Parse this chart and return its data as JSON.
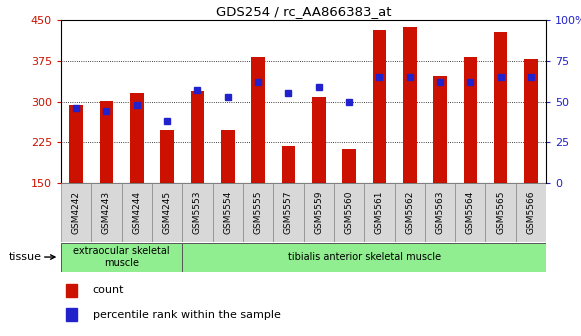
{
  "title": "GDS254 / rc_AA866383_at",
  "samples": [
    "GSM4242",
    "GSM4243",
    "GSM4244",
    "GSM4245",
    "GSM5553",
    "GSM5554",
    "GSM5555",
    "GSM5557",
    "GSM5559",
    "GSM5560",
    "GSM5561",
    "GSM5562",
    "GSM5563",
    "GSM5564",
    "GSM5565",
    "GSM5566"
  ],
  "counts": [
    293,
    302,
    315,
    248,
    320,
    248,
    383,
    218,
    308,
    213,
    432,
    438,
    347,
    383,
    428,
    378
  ],
  "percentile": [
    46,
    44,
    48,
    38,
    57,
    53,
    62,
    55,
    59,
    50,
    65,
    65,
    62,
    62,
    65,
    65
  ],
  "tissue_groups": [
    {
      "label": "extraocular skeletal\nmuscle",
      "start": 0,
      "end": 4,
      "color": "#90EE90"
    },
    {
      "label": "tibialis anterior skeletal muscle",
      "start": 4,
      "end": 16,
      "color": "#90EE90"
    }
  ],
  "bar_color": "#CC1100",
  "dot_color": "#2222CC",
  "ylim_left": [
    150,
    450
  ],
  "ylim_right": [
    0,
    100
  ],
  "yticks_left": [
    150,
    225,
    300,
    375,
    450
  ],
  "yticks_right": [
    0,
    25,
    50,
    75,
    100
  ],
  "background_color": "#ffffff",
  "bar_width": 0.45,
  "tissue_label": "tissue",
  "legend_count": "count",
  "legend_percentile": "percentile rank within the sample",
  "cell_bg": "#d8d8d8",
  "cell_border": "#888888"
}
